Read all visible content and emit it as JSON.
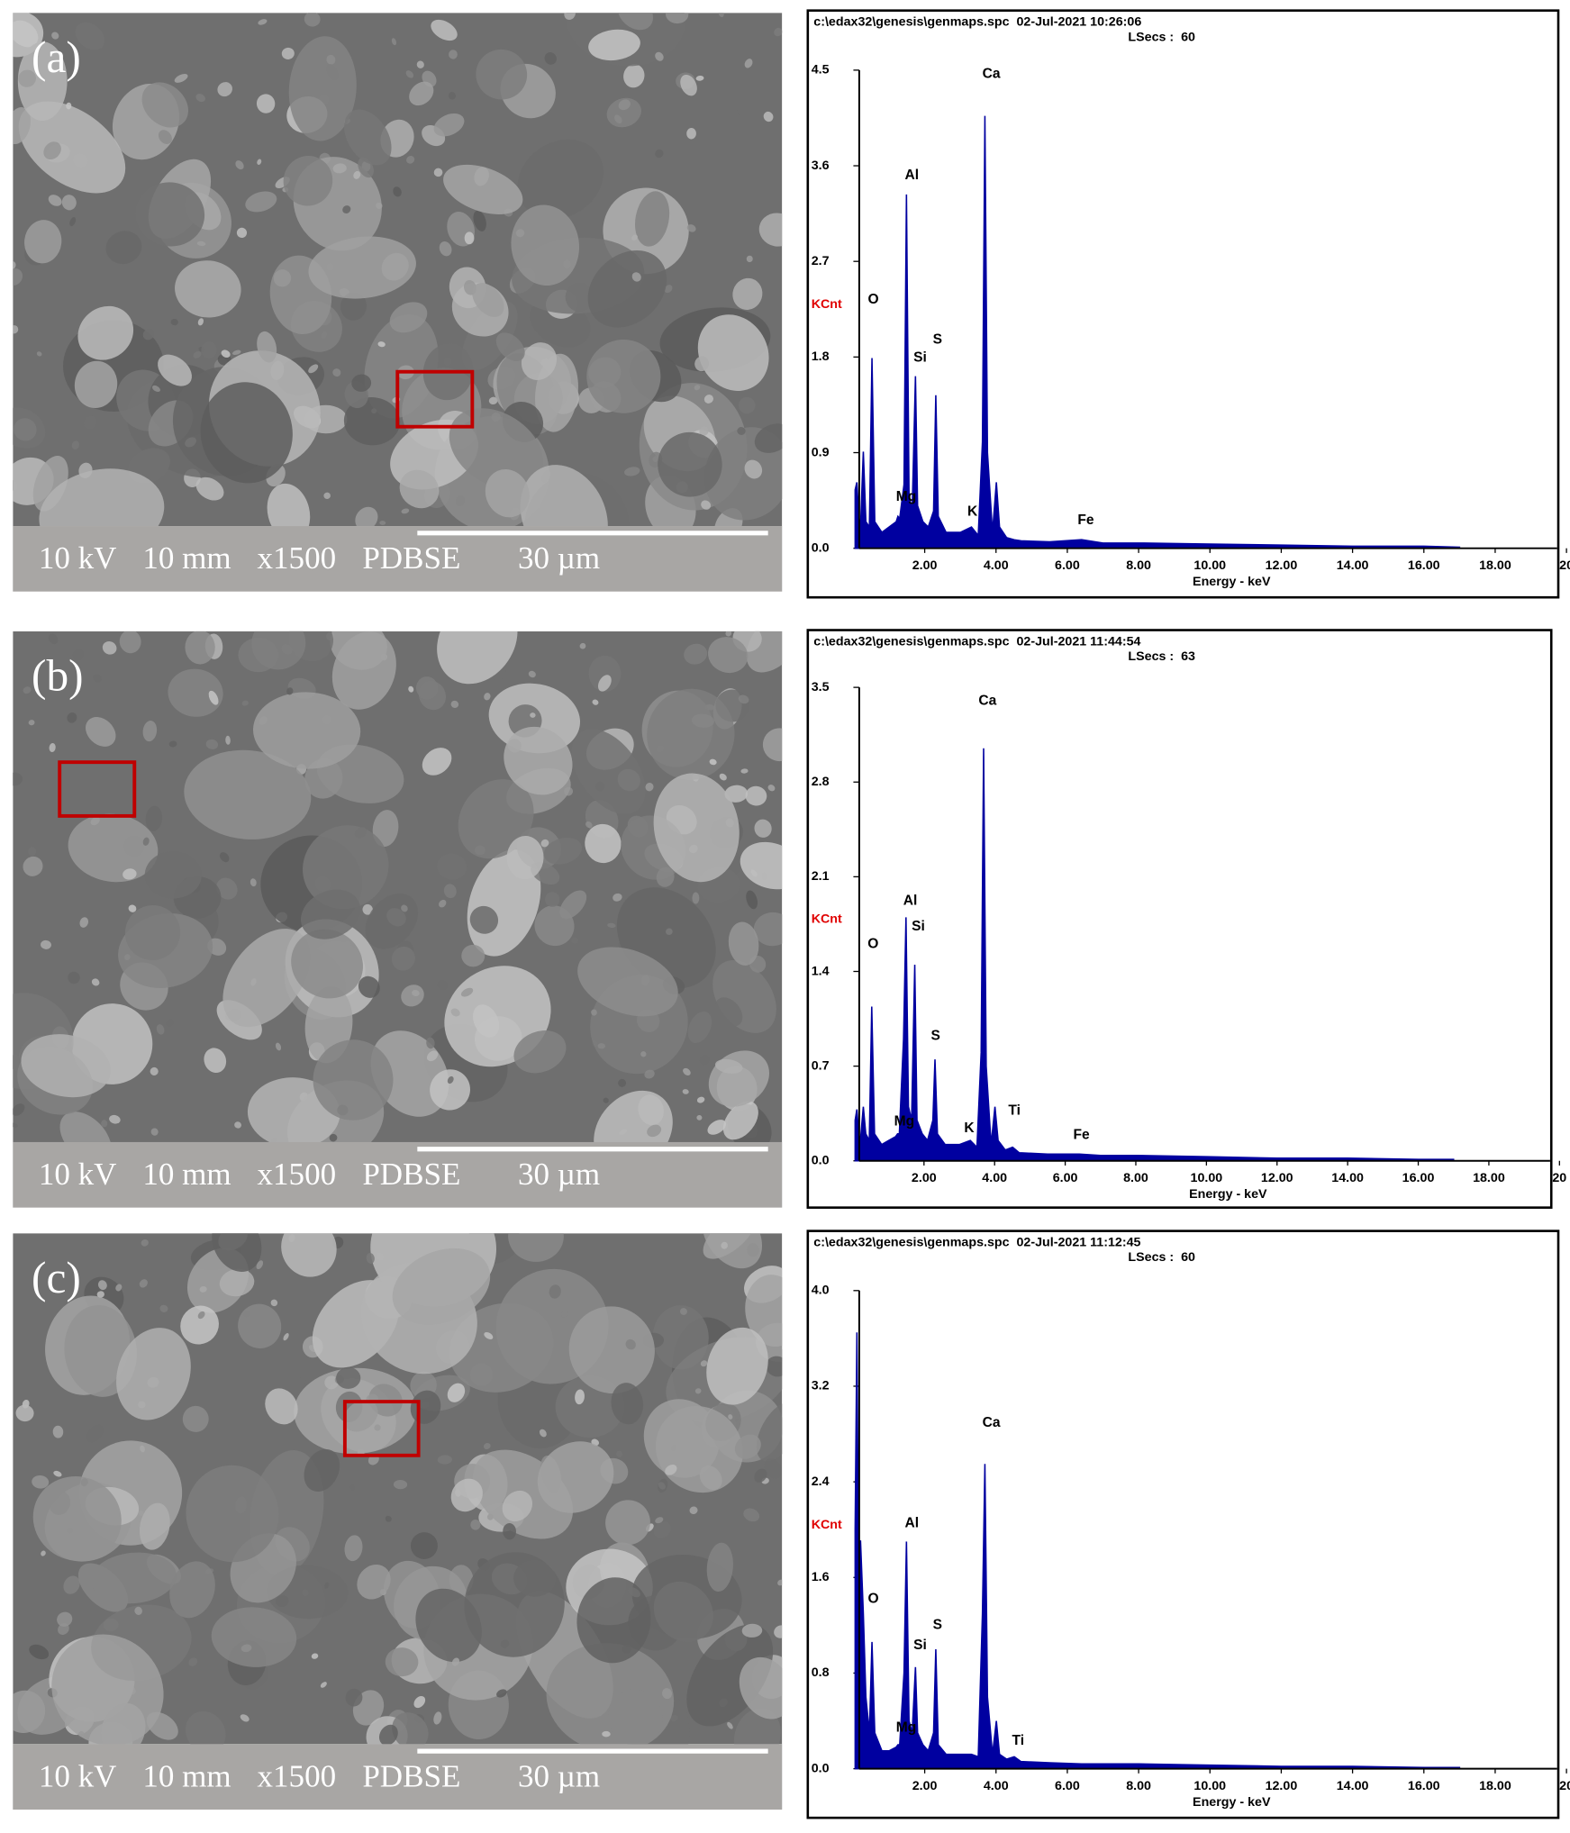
{
  "sem_images": [
    {
      "label": "(a)",
      "info": [
        "10 kV",
        "10 mm",
        "x1500",
        "PDBSE",
        "30 µm"
      ]
    },
    {
      "label": "(b)",
      "info": [
        "10 kV",
        "10 mm",
        "x1500",
        "PDBSE",
        "30 µm"
      ]
    },
    {
      "label": "(c)",
      "info": [
        "10 kV",
        "10 mm",
        "x1500",
        "PDBSE",
        "30 µm"
      ]
    }
  ],
  "chart_data": [
    {
      "type": "line",
      "title": "c:\\edax32\\genesis\\genmaps.spc  02-Jul-2021 10:26:06",
      "subtitle": "LSecs :  60",
      "y_label": "KCnt",
      "x_label": "Energy - keV",
      "color": "#0000a0",
      "xlim": [
        0,
        20
      ],
      "ylim": [
        0,
        4.5
      ],
      "xticks": [
        {
          "value": 2,
          "label": "2.00"
        },
        {
          "value": 4,
          "label": "4.00"
        },
        {
          "value": 6,
          "label": "6.00"
        },
        {
          "value": 8,
          "label": "8.00"
        },
        {
          "value": 10,
          "label": "10.00"
        },
        {
          "value": 12,
          "label": "12.00"
        },
        {
          "value": 14,
          "label": "14.00"
        },
        {
          "value": 16,
          "label": "16.00"
        },
        {
          "value": 18,
          "label": "18.00"
        },
        20
      ],
      "yticks": [
        {
          "value": 0,
          "label": "0.0"
        },
        0.9,
        1.8,
        2.7,
        3.6,
        4.5
      ],
      "x": [
        0.05,
        0.1,
        0.15,
        0.2,
        0.28,
        0.35,
        0.45,
        0.52,
        0.6,
        0.8,
        1.0,
        1.2,
        1.25,
        1.3,
        1.42,
        1.49,
        1.56,
        1.65,
        1.74,
        1.8,
        1.95,
        2.1,
        2.25,
        2.31,
        2.38,
        2.6,
        3.0,
        3.31,
        3.5,
        3.62,
        3.69,
        3.76,
        3.9,
        4.01,
        4.1,
        4.3,
        4.51,
        4.7,
        5.5,
        6.4,
        7,
        8,
        10,
        12,
        14,
        16,
        17
      ],
      "values": [
        0.55,
        0.62,
        0.3,
        0.2,
        0.91,
        0.25,
        0.2,
        1.79,
        0.25,
        0.15,
        0.2,
        0.25,
        0.3,
        0.28,
        0.6,
        3.33,
        0.5,
        0.35,
        1.62,
        0.4,
        0.25,
        0.2,
        0.35,
        1.44,
        0.3,
        0.15,
        0.15,
        0.2,
        0.12,
        1.0,
        4.07,
        0.9,
        0.15,
        0.62,
        0.2,
        0.1,
        0.08,
        0.07,
        0.06,
        0.08,
        0.05,
        0.05,
        0.04,
        0.03,
        0.02,
        0.02,
        0.01
      ],
      "annotations": [
        {
          "text": "O",
          "x": 0.56,
          "y": 2.34
        },
        {
          "text": "Al",
          "x": 1.64,
          "y": 3.51
        },
        {
          "text": "Si",
          "x": 1.87,
          "y": 1.79
        },
        {
          "text": "S",
          "x": 2.36,
          "y": 1.96
        },
        {
          "text": "Mg",
          "x": 1.48,
          "y": 0.48
        },
        {
          "text": "K",
          "x": 3.34,
          "y": 0.34
        },
        {
          "text": "Ca",
          "x": 3.87,
          "y": 4.46
        },
        {
          "text": "Fe",
          "x": 6.52,
          "y": 0.26
        }
      ]
    },
    {
      "type": "line",
      "title": "c:\\edax32\\genesis\\genmaps.spc  02-Jul-2021 11:44:54",
      "subtitle": "LSecs :  63",
      "y_label": "KCnt",
      "x_label": "Energy - keV",
      "color": "#0000a0",
      "xlim": [
        0,
        20
      ],
      "ylim": [
        0,
        3.5
      ],
      "xticks": [
        {
          "value": 2,
          "label": "2.00"
        },
        {
          "value": 4,
          "label": "4.00"
        },
        {
          "value": 6,
          "label": "6.00"
        },
        {
          "value": 8,
          "label": "8.00"
        },
        {
          "value": 10,
          "label": "10.00"
        },
        {
          "value": 12,
          "label": "12.00"
        },
        {
          "value": 14,
          "label": "14.00"
        },
        {
          "value": 16,
          "label": "16.00"
        },
        {
          "value": 18,
          "label": "18.00"
        },
        20
      ],
      "yticks": [
        {
          "value": 0,
          "label": "0.0"
        },
        0.7,
        1.4,
        2.1,
        2.8,
        3.5
      ],
      "x": [
        0.05,
        0.1,
        0.15,
        0.2,
        0.28,
        0.35,
        0.45,
        0.52,
        0.6,
        0.8,
        1.0,
        1.2,
        1.25,
        1.3,
        1.42,
        1.49,
        1.56,
        1.65,
        1.74,
        1.8,
        1.95,
        2.1,
        2.25,
        2.31,
        2.38,
        2.6,
        3.0,
        3.31,
        3.5,
        3.62,
        3.69,
        3.76,
        3.9,
        4.01,
        4.1,
        4.3,
        4.51,
        4.7,
        5.5,
        6.4,
        7,
        8,
        10,
        12,
        14,
        16,
        17
      ],
      "values": [
        0.3,
        0.38,
        0.2,
        0.15,
        0.4,
        0.2,
        0.15,
        1.14,
        0.2,
        0.12,
        0.15,
        0.18,
        0.2,
        0.2,
        0.9,
        1.8,
        0.4,
        0.3,
        1.45,
        0.3,
        0.2,
        0.15,
        0.3,
        0.75,
        0.2,
        0.12,
        0.12,
        0.15,
        0.1,
        0.8,
        3.05,
        0.7,
        0.12,
        0.4,
        0.15,
        0.08,
        0.1,
        0.06,
        0.05,
        0.05,
        0.04,
        0.04,
        0.03,
        0.02,
        0.02,
        0.01,
        0.01
      ],
      "annotations": [
        {
          "text": "O",
          "x": 0.56,
          "y": 1.6
        },
        {
          "text": "Al",
          "x": 1.61,
          "y": 1.92
        },
        {
          "text": "Si",
          "x": 1.84,
          "y": 1.73
        },
        {
          "text": "S",
          "x": 2.33,
          "y": 0.92
        },
        {
          "text": "Mg",
          "x": 1.44,
          "y": 0.29
        },
        {
          "text": "K",
          "x": 3.28,
          "y": 0.24
        },
        {
          "text": "Ti",
          "x": 4.56,
          "y": 0.37
        },
        {
          "text": "Ca",
          "x": 3.8,
          "y": 3.4
        },
        {
          "text": "Fe",
          "x": 6.46,
          "y": 0.19
        }
      ]
    },
    {
      "type": "line",
      "title": "c:\\edax32\\genesis\\genmaps.spc  02-Jul-2021 11:12:45",
      "subtitle": "LSecs :  60",
      "y_label": "KCnt",
      "x_label": "Energy - keV",
      "color": "#0000a0",
      "xlim": [
        0,
        20
      ],
      "ylim": [
        0,
        4.0
      ],
      "xticks": [
        {
          "value": 2,
          "label": "2.00"
        },
        {
          "value": 4,
          "label": "4.00"
        },
        {
          "value": 6,
          "label": "6.00"
        },
        {
          "value": 8,
          "label": "8.00"
        },
        {
          "value": 10,
          "label": "10.00"
        },
        {
          "value": 12,
          "label": "12.00"
        },
        {
          "value": 14,
          "label": "14.00"
        },
        {
          "value": 16,
          "label": "16.00"
        },
        {
          "value": 18,
          "label": "18.00"
        },
        20
      ],
      "yticks": [
        {
          "value": 0,
          "label": "0.0"
        },
        0.8,
        1.6,
        2.4,
        3.2,
        {
          "value": 4,
          "label": "4.0"
        }
      ],
      "x": [
        0.05,
        0.1,
        0.15,
        0.2,
        0.28,
        0.35,
        0.45,
        0.52,
        0.6,
        0.8,
        1.0,
        1.2,
        1.25,
        1.3,
        1.42,
        1.49,
        1.56,
        1.65,
        1.74,
        1.8,
        1.95,
        2.1,
        2.25,
        2.31,
        2.38,
        2.6,
        3.0,
        3.31,
        3.5,
        3.62,
        3.69,
        3.76,
        3.9,
        4.01,
        4.1,
        4.3,
        4.51,
        4.7,
        5.5,
        6.4,
        7,
        8,
        10,
        12,
        14,
        16,
        17
      ],
      "values": [
        2.0,
        3.65,
        1.3,
        1.91,
        1.3,
        0.6,
        0.3,
        1.06,
        0.3,
        0.15,
        0.15,
        0.18,
        0.2,
        0.2,
        0.8,
        1.9,
        0.4,
        0.3,
        0.85,
        0.3,
        0.2,
        0.15,
        0.3,
        1.0,
        0.2,
        0.12,
        0.12,
        0.12,
        0.1,
        1.3,
        2.55,
        0.6,
        0.12,
        0.4,
        0.12,
        0.08,
        0.1,
        0.06,
        0.05,
        0.04,
        0.04,
        0.04,
        0.03,
        0.02,
        0.02,
        0.01,
        0.01
      ],
      "annotations": [
        {
          "text": "O",
          "x": 0.56,
          "y": 1.42
        },
        {
          "text": "Al",
          "x": 1.64,
          "y": 2.05
        },
        {
          "text": "Si",
          "x": 1.87,
          "y": 1.03
        },
        {
          "text": "S",
          "x": 2.36,
          "y": 1.2
        },
        {
          "text": "Mg",
          "x": 1.48,
          "y": 0.34
        },
        {
          "text": "Ti",
          "x": 4.62,
          "y": 0.23
        },
        {
          "text": "Ca",
          "x": 3.87,
          "y": 2.89
        }
      ]
    }
  ]
}
